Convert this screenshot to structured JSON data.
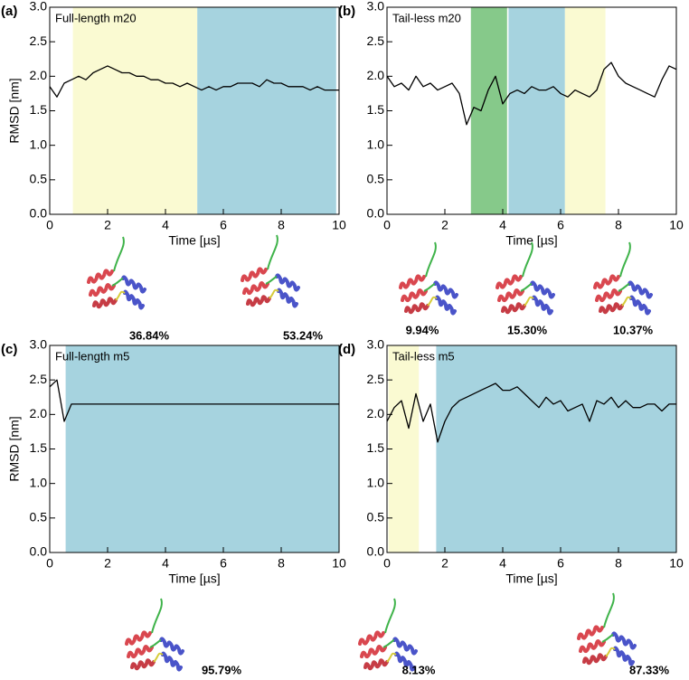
{
  "chart_data": [
    {
      "type": "line",
      "panel_label": "(a)",
      "title": "Full-length m20",
      "x_label": "Time [µs]",
      "y_label": "RMSD [nm]",
      "xlim": [
        0,
        10
      ],
      "ylim": [
        0,
        3
      ],
      "xticks": [
        0,
        2,
        4,
        6,
        8,
        10
      ],
      "yticks": [
        {
          "value": 0,
          "label": "0.0"
        },
        0.5,
        {
          "value": 1,
          "label": "1.0"
        },
        1.5,
        {
          "value": 2,
          "label": "2.0"
        },
        2.5,
        {
          "value": 3,
          "label": "3.0"
        }
      ],
      "spans": [
        {
          "start": 0.8,
          "end": 5.1,
          "color": "#fafad2"
        },
        {
          "start": 5.1,
          "end": 9.9,
          "color": "#a6d3df"
        }
      ],
      "x": [
        0,
        0.25,
        0.5,
        0.75,
        1,
        1.25,
        1.5,
        1.75,
        2,
        2.25,
        2.5,
        2.75,
        3,
        3.25,
        3.5,
        3.75,
        4,
        4.25,
        4.5,
        4.75,
        5,
        5.25,
        5.5,
        5.75,
        6,
        6.25,
        6.5,
        6.75,
        7,
        7.25,
        7.5,
        7.75,
        8,
        8.25,
        8.5,
        8.75,
        9,
        9.25,
        9.5,
        9.75,
        10
      ],
      "series": [
        {
          "color": "#000000",
          "values": [
            1.85,
            1.7,
            1.9,
            1.95,
            2.0,
            1.95,
            2.05,
            2.1,
            2.15,
            2.1,
            2.05,
            2.05,
            2.0,
            2.0,
            1.95,
            1.95,
            1.9,
            1.9,
            1.85,
            1.9,
            1.85,
            1.8,
            1.85,
            1.8,
            1.85,
            1.85,
            1.9,
            1.9,
            1.9,
            1.85,
            1.95,
            1.9,
            1.9,
            1.85,
            1.85,
            1.85,
            1.8,
            1.85,
            1.8,
            1.8,
            1.8
          ]
        }
      ],
      "population_labels": [
        "36.84%",
        "53.24%"
      ]
    },
    {
      "type": "line",
      "panel_label": "(b)",
      "title": "Tail-less m20",
      "x_label": "Time [µs]",
      "xlim": [
        0,
        10
      ],
      "ylim": [
        0,
        3
      ],
      "xticks": [
        0,
        2,
        4,
        6,
        8,
        10
      ],
      "yticks": [
        {
          "value": 0,
          "label": "0.0"
        },
        0.5,
        {
          "value": 1,
          "label": "1.0"
        },
        1.5,
        {
          "value": 2,
          "label": "2.0"
        },
        2.5,
        {
          "value": 3,
          "label": "3.0"
        }
      ],
      "spans": [
        {
          "start": 2.9,
          "end": 4.15,
          "color": "#86c98a"
        },
        {
          "start": 4.2,
          "end": 6.15,
          "color": "#a6d3df"
        },
        {
          "start": 6.15,
          "end": 7.55,
          "color": "#fafad2"
        }
      ],
      "x": [
        0,
        0.25,
        0.5,
        0.75,
        1,
        1.25,
        1.5,
        1.75,
        2,
        2.25,
        2.5,
        2.75,
        3,
        3.25,
        3.5,
        3.75,
        4,
        4.25,
        4.5,
        4.75,
        5,
        5.25,
        5.5,
        5.75,
        6,
        6.25,
        6.5,
        6.75,
        7,
        7.25,
        7.5,
        7.75,
        8,
        8.25,
        8.5,
        8.75,
        9,
        9.25,
        9.5,
        9.75,
        10
      ],
      "series": [
        {
          "color": "#000000",
          "values": [
            2.0,
            1.85,
            1.9,
            1.8,
            2.0,
            1.85,
            1.9,
            1.8,
            1.85,
            1.9,
            1.75,
            1.3,
            1.55,
            1.5,
            1.8,
            2.0,
            1.6,
            1.75,
            1.8,
            1.75,
            1.85,
            1.8,
            1.8,
            1.85,
            1.75,
            1.7,
            1.8,
            1.75,
            1.7,
            1.8,
            2.1,
            2.2,
            2.0,
            1.9,
            1.85,
            1.8,
            1.75,
            1.7,
            1.95,
            2.15,
            2.1
          ]
        }
      ],
      "population_labels": [
        "9.94%",
        "15.30%",
        "10.37%"
      ]
    },
    {
      "type": "line",
      "panel_label": "(c)",
      "title": "Full-length m5",
      "x_label": "Time [µs]",
      "y_label": "RMSD [nm]",
      "xlim": [
        0,
        10
      ],
      "ylim": [
        0,
        3
      ],
      "xticks": [
        0,
        2,
        4,
        6,
        8,
        10
      ],
      "yticks": [
        {
          "value": 0,
          "label": "0.0"
        },
        0.5,
        {
          "value": 1,
          "label": "1.0"
        },
        1.5,
        {
          "value": 2,
          "label": "2.0"
        },
        2.5,
        {
          "value": 3,
          "label": "3.0"
        }
      ],
      "spans": [
        {
          "start": 0.55,
          "end": 10,
          "color": "#a6d3df"
        }
      ],
      "x": [
        0,
        0.25,
        0.5,
        0.75,
        1,
        1.25,
        1.5,
        1.75,
        2,
        2.25,
        2.5,
        2.75,
        3,
        3.25,
        3.5,
        3.75,
        4,
        4.25,
        4.5,
        4.75,
        5,
        5.25,
        5.5,
        5.75,
        6,
        6.25,
        6.5,
        6.75,
        7,
        7.25,
        7.5,
        7.75,
        8,
        8.25,
        8.5,
        8.75,
        9,
        9.25,
        9.5,
        9.75,
        10
      ],
      "series": [
        {
          "color": "#000000",
          "values": [
            2.4,
            2.5,
            1.9,
            2.15,
            2.15,
            2.15,
            2.15,
            2.15,
            2.15,
            2.15,
            2.15,
            2.15,
            2.15,
            2.15,
            2.15,
            2.15,
            2.15,
            2.15,
            2.15,
            2.15,
            2.15,
            2.15,
            2.15,
            2.15,
            2.15,
            2.15,
            2.15,
            2.15,
            2.15,
            2.15,
            2.15,
            2.15,
            2.15,
            2.15,
            2.15,
            2.15,
            2.15,
            2.15,
            2.15,
            2.15,
            2.15
          ]
        }
      ],
      "population_labels": [
        "95.79%"
      ]
    },
    {
      "type": "line",
      "panel_label": "(d)",
      "title": "Tail-less m5",
      "x_label": "Time [µs]",
      "xlim": [
        0,
        10
      ],
      "ylim": [
        0,
        3
      ],
      "xticks": [
        0,
        2,
        4,
        6,
        8,
        10
      ],
      "yticks": [
        {
          "value": 0,
          "label": "0.0"
        },
        0.5,
        {
          "value": 1,
          "label": "1.0"
        },
        1.5,
        {
          "value": 2,
          "label": "2.0"
        },
        2.5,
        {
          "value": 3,
          "label": "3.0"
        }
      ],
      "spans": [
        {
          "start": 0.05,
          "end": 1.1,
          "color": "#fafad2"
        },
        {
          "start": 1.7,
          "end": 10,
          "color": "#a6d3df"
        }
      ],
      "x": [
        0,
        0.25,
        0.5,
        0.75,
        1,
        1.25,
        1.5,
        1.75,
        2,
        2.25,
        2.5,
        2.75,
        3,
        3.25,
        3.5,
        3.75,
        4,
        4.25,
        4.5,
        4.75,
        5,
        5.25,
        5.5,
        5.75,
        6,
        6.25,
        6.5,
        6.75,
        7,
        7.25,
        7.5,
        7.75,
        8,
        8.25,
        8.5,
        8.75,
        9,
        9.25,
        9.5,
        9.75,
        10
      ],
      "series": [
        {
          "color": "#000000",
          "values": [
            1.9,
            2.1,
            2.2,
            1.8,
            2.3,
            1.9,
            2.15,
            1.6,
            1.9,
            2.1,
            2.2,
            2.25,
            2.3,
            2.35,
            2.4,
            2.45,
            2.35,
            2.35,
            2.4,
            2.3,
            2.2,
            2.1,
            2.25,
            2.15,
            2.2,
            2.05,
            2.1,
            2.15,
            1.9,
            2.2,
            2.15,
            2.25,
            2.1,
            2.2,
            2.1,
            2.1,
            2.15,
            2.15,
            2.05,
            2.15,
            2.15
          ]
        }
      ],
      "population_labels": [
        "8.13%",
        "87.33%"
      ]
    }
  ]
}
